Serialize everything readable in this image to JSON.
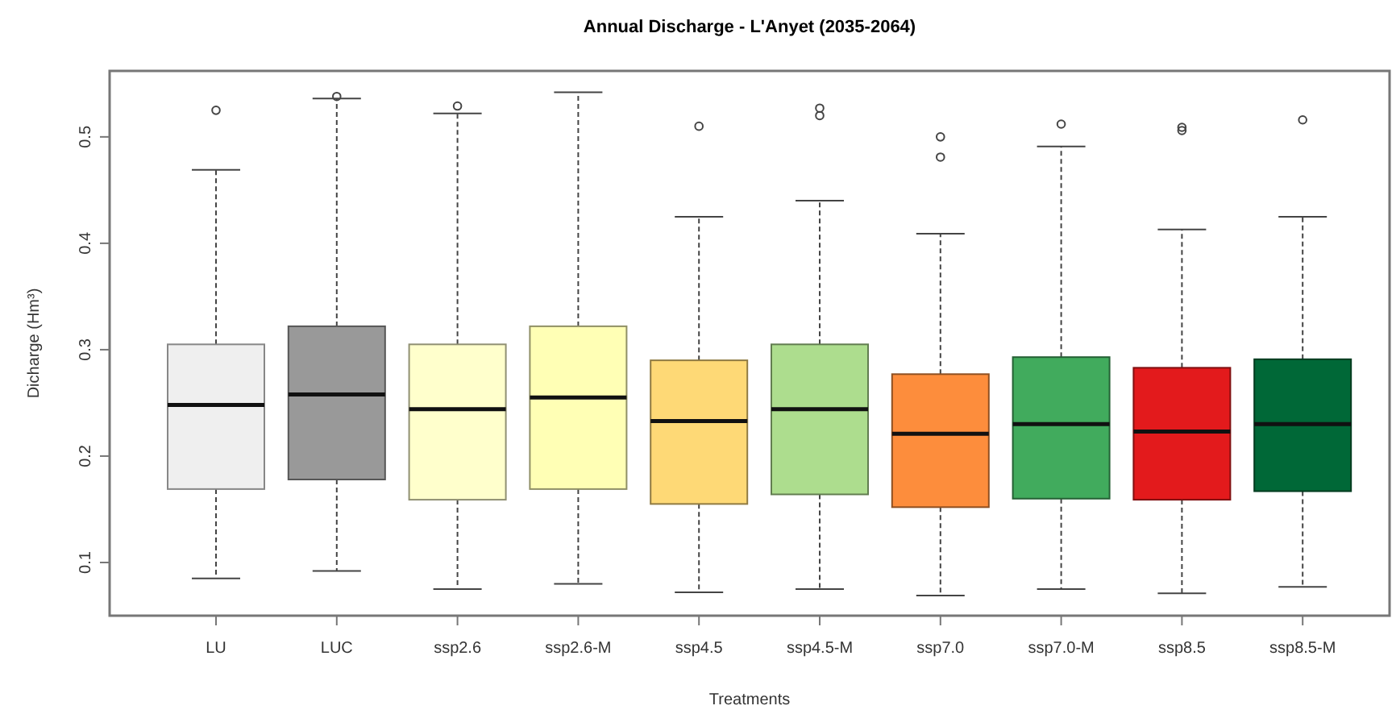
{
  "chart_data": {
    "type": "box",
    "title": "Annual Discharge - L'Anyet (2035-2064)",
    "xlabel": "Treatments",
    "ylabel": "Dicharge (Hm³)",
    "categories": [
      "LU",
      "LUC",
      "ssp2.6",
      "ssp2.6-M",
      "ssp4.5",
      "ssp4.5-M",
      "ssp7.0",
      "ssp7.0-M",
      "ssp8.5",
      "ssp8.5-M"
    ],
    "colors": [
      "#efefef",
      "#999999",
      "#ffffcc",
      "#ffffb5",
      "#fed976",
      "#addd8e",
      "#fd8d3c",
      "#41ab5d",
      "#e31a1c",
      "#006837"
    ],
    "boxes": [
      {
        "low": 0.085,
        "q1": 0.169,
        "median": 0.248,
        "q3": 0.305,
        "high": 0.469,
        "outliers": [
          0.525
        ]
      },
      {
        "low": 0.092,
        "q1": 0.178,
        "median": 0.258,
        "q3": 0.322,
        "high": 0.536,
        "outliers": [
          0.538
        ]
      },
      {
        "low": 0.075,
        "q1": 0.159,
        "median": 0.244,
        "q3": 0.305,
        "high": 0.522,
        "outliers": [
          0.529
        ]
      },
      {
        "low": 0.08,
        "q1": 0.169,
        "median": 0.255,
        "q3": 0.322,
        "high": 0.542
      },
      {
        "low": 0.072,
        "q1": 0.155,
        "median": 0.233,
        "q3": 0.29,
        "high": 0.425,
        "outliers": [
          0.51
        ]
      },
      {
        "low": 0.075,
        "q1": 0.164,
        "median": 0.244,
        "q3": 0.305,
        "high": 0.44,
        "outliers": [
          0.527,
          0.52
        ]
      },
      {
        "low": 0.069,
        "q1": 0.152,
        "median": 0.221,
        "q3": 0.277,
        "high": 0.409,
        "outliers": [
          0.5,
          0.481
        ]
      },
      {
        "low": 0.075,
        "q1": 0.16,
        "median": 0.23,
        "q3": 0.293,
        "high": 0.491,
        "outliers": [
          0.512
        ]
      },
      {
        "low": 0.071,
        "q1": 0.159,
        "median": 0.223,
        "q3": 0.283,
        "high": 0.413,
        "outliers": [
          0.509,
          0.506
        ]
      },
      {
        "low": 0.077,
        "q1": 0.167,
        "median": 0.23,
        "q3": 0.291,
        "high": 0.425,
        "outliers": [
          0.516
        ]
      }
    ],
    "ylim": [
      0.05,
      0.562
    ],
    "yticks": [
      0.1,
      0.2,
      0.3,
      0.4,
      0.5
    ],
    "grid": false
  }
}
